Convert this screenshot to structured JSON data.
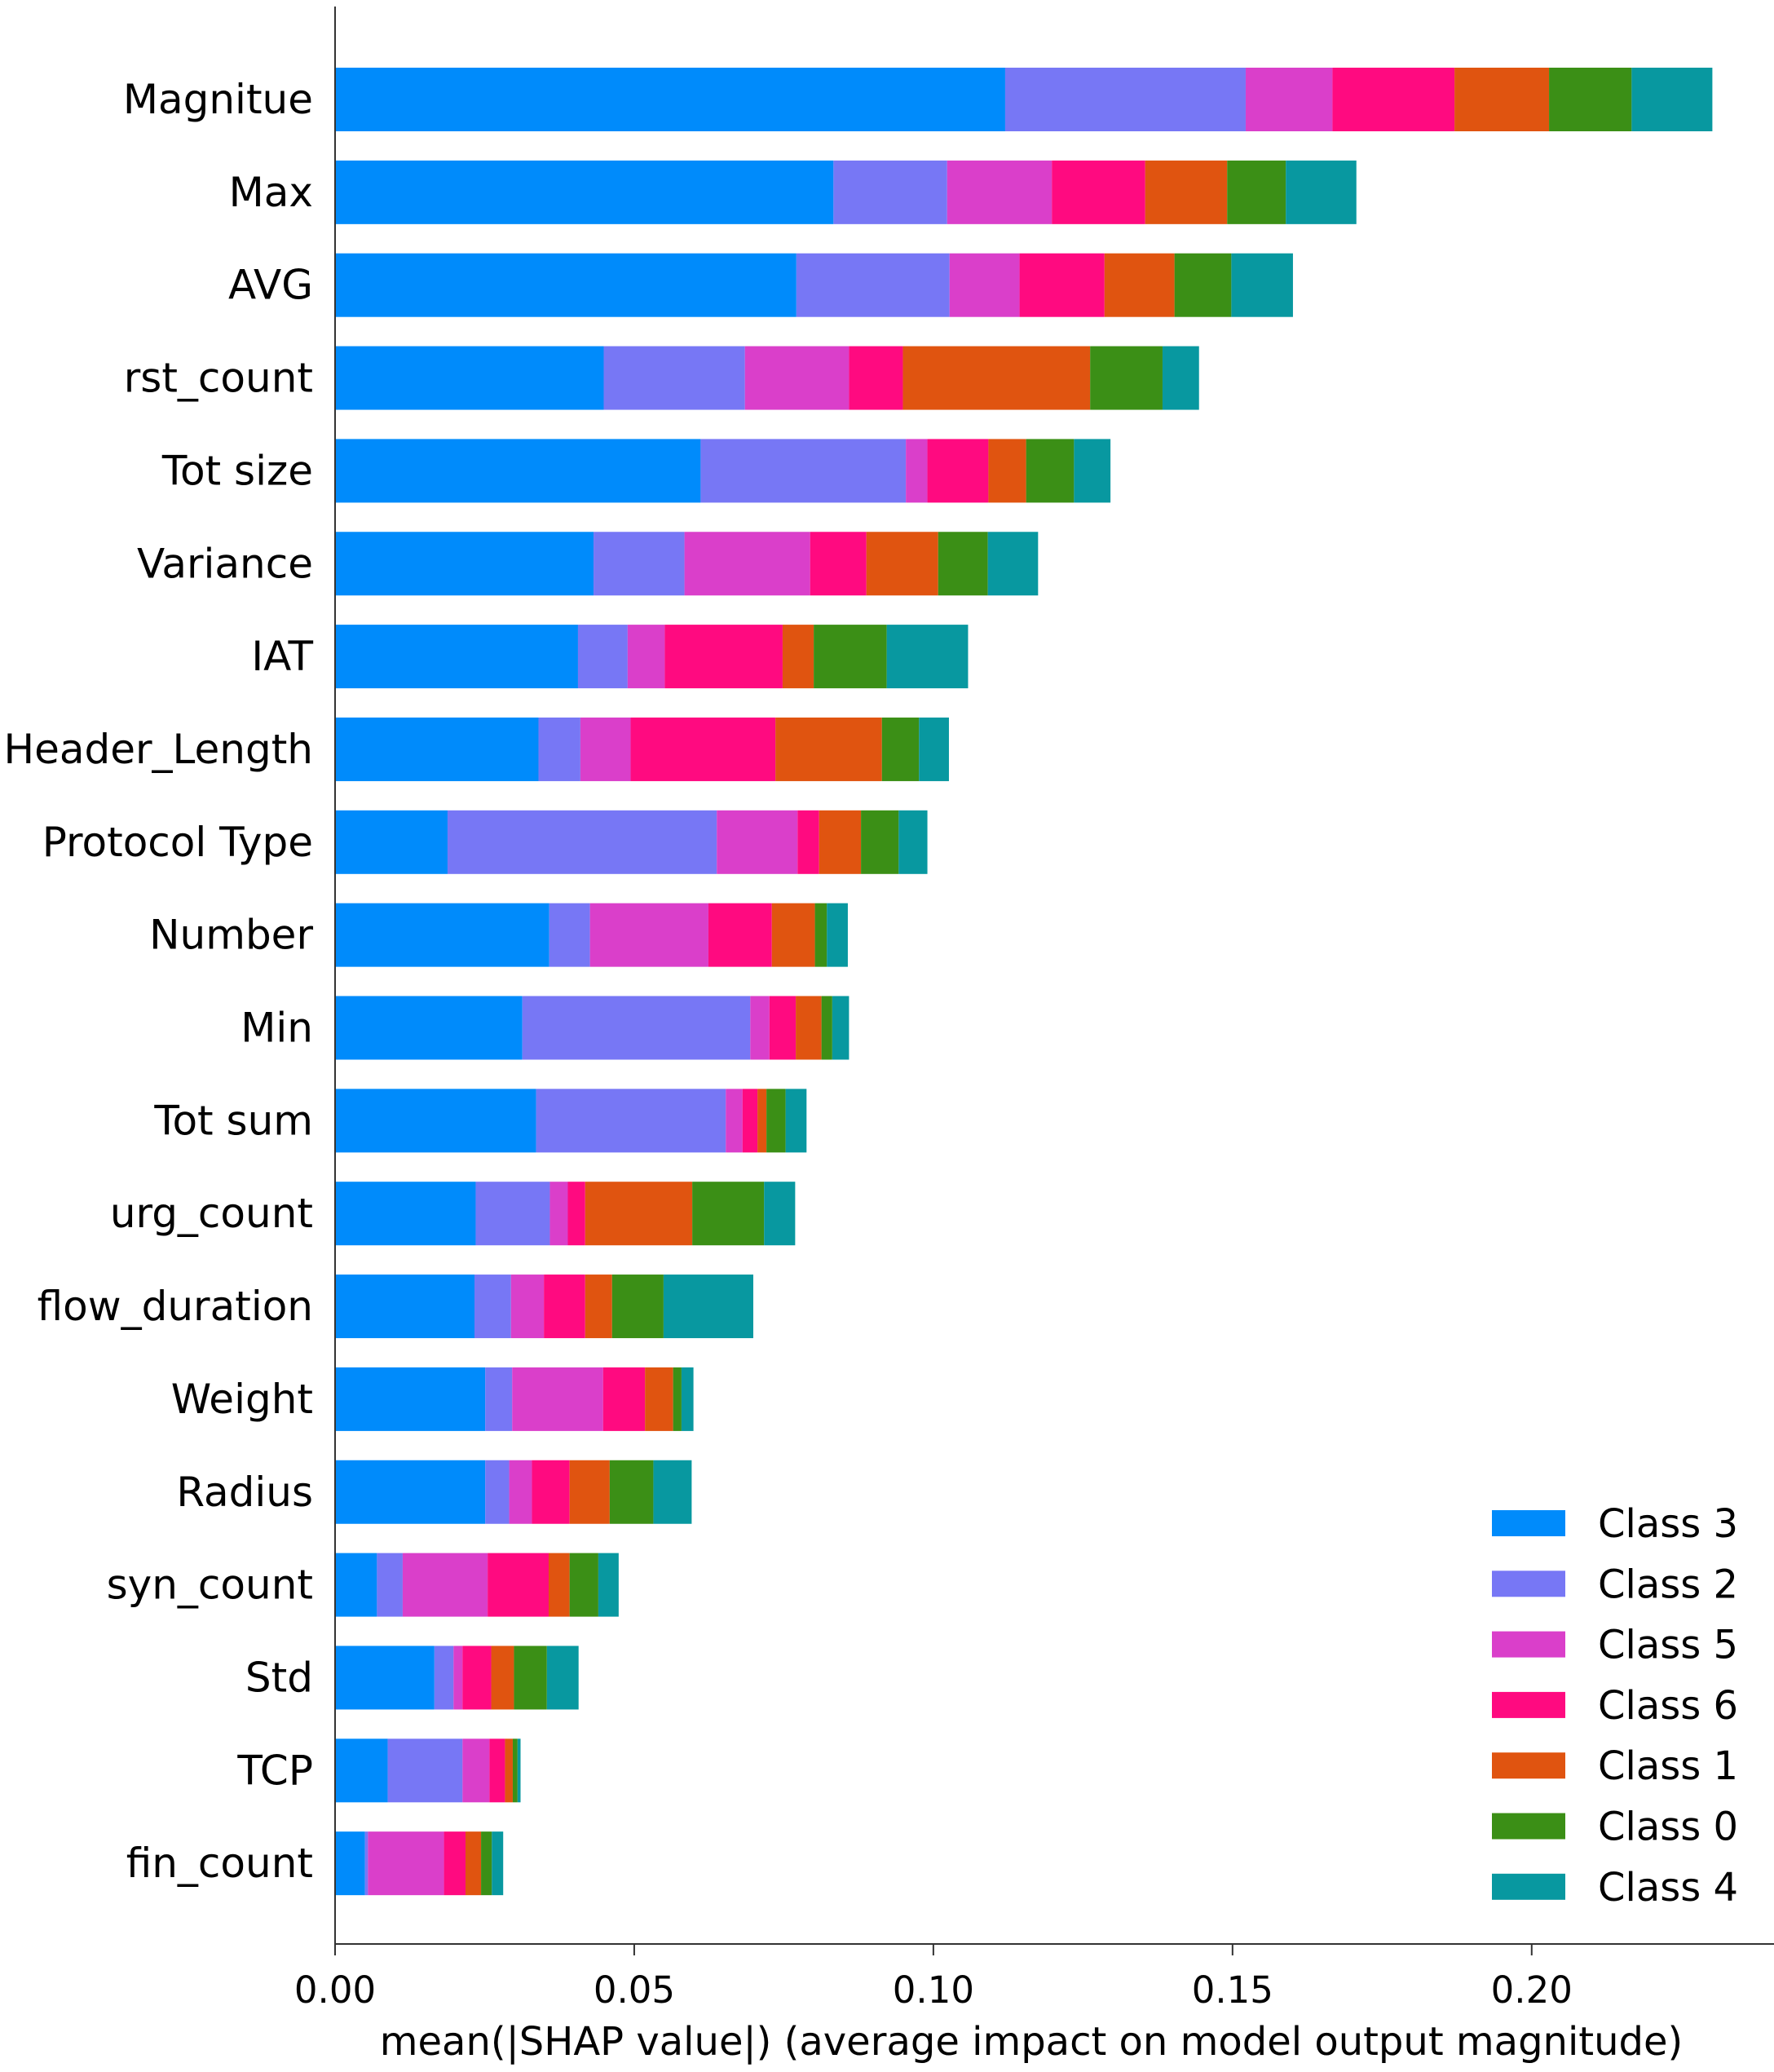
{
  "chart_data": {
    "type": "bar",
    "orientation": "horizontal",
    "stacked": true,
    "title": "",
    "xlabel": "mean(|SHAP value|) (average impact on model output magnitude)",
    "ylabel": "",
    "xlim": [
      0,
      0.2405
    ],
    "x_ticks": [
      0.0,
      0.05,
      0.1,
      0.15,
      0.2
    ],
    "x_tick_labels": [
      "0.00",
      "0.05",
      "0.10",
      "0.15",
      "0.20"
    ],
    "grid": false,
    "legend_position": "lower-right",
    "categories": [
      "Magnitue",
      "Max",
      "AVG",
      "rst_count",
      "Tot size",
      "Variance",
      "IAT",
      "Header_Length",
      "Protocol Type",
      "Number",
      "Min",
      "Tot sum",
      "urg_count",
      "flow_duration",
      "Weight",
      "Radius",
      "syn_count",
      "Std",
      "TCP",
      "fin_count"
    ],
    "series": [
      {
        "name": "Class 3",
        "color": "#008bfb",
        "values": [
          0.112,
          0.0833,
          0.0771,
          0.0449,
          0.0611,
          0.0432,
          0.0406,
          0.034,
          0.0188,
          0.0358,
          0.0313,
          0.0336,
          0.0235,
          0.0233,
          0.0251,
          0.0251,
          0.007,
          0.0166,
          0.0088,
          0.005
        ]
      },
      {
        "name": "Class 2",
        "color": "#7777f5",
        "values": [
          0.0402,
          0.019,
          0.0256,
          0.0236,
          0.0343,
          0.0152,
          0.0083,
          0.007,
          0.045,
          0.0068,
          0.0381,
          0.0317,
          0.0124,
          0.0061,
          0.0045,
          0.004,
          0.0043,
          0.0032,
          0.0125,
          0.0005
        ]
      },
      {
        "name": "Class 5",
        "color": "#da3fca",
        "values": [
          0.0145,
          0.0175,
          0.0117,
          0.0174,
          0.0036,
          0.021,
          0.0062,
          0.0084,
          0.0135,
          0.0198,
          0.0032,
          0.0028,
          0.003,
          0.0055,
          0.0152,
          0.0038,
          0.0142,
          0.0015,
          0.0045,
          0.0127
        ]
      },
      {
        "name": "Class 6",
        "color": "#ff0a80",
        "values": [
          0.0204,
          0.0156,
          0.0142,
          0.009,
          0.0102,
          0.0094,
          0.0197,
          0.0242,
          0.0036,
          0.0106,
          0.0044,
          0.0025,
          0.0029,
          0.0069,
          0.007,
          0.0063,
          0.0102,
          0.0048,
          0.0026,
          0.0036
        ]
      },
      {
        "name": "Class 1",
        "color": "#e05410",
        "values": [
          0.0158,
          0.0137,
          0.0117,
          0.0313,
          0.0063,
          0.012,
          0.0052,
          0.0178,
          0.007,
          0.0072,
          0.0043,
          0.0015,
          0.0179,
          0.0045,
          0.0047,
          0.0067,
          0.0035,
          0.0038,
          0.0013,
          0.0026
        ]
      },
      {
        "name": "Class 0",
        "color": "#3b8f16",
        "values": [
          0.0138,
          0.0098,
          0.0095,
          0.0121,
          0.008,
          0.0083,
          0.0122,
          0.0062,
          0.0063,
          0.002,
          0.0018,
          0.0032,
          0.012,
          0.0086,
          0.0014,
          0.0073,
          0.0048,
          0.0055,
          0.0008,
          0.0018
        ]
      },
      {
        "name": "Class 4",
        "color": "#0898a0",
        "values": [
          0.0135,
          0.0118,
          0.0103,
          0.0061,
          0.0061,
          0.0084,
          0.0136,
          0.005,
          0.0048,
          0.0035,
          0.0028,
          0.0035,
          0.0052,
          0.015,
          0.002,
          0.0064,
          0.0034,
          0.0053,
          0.0005,
          0.0019
        ]
      }
    ]
  }
}
